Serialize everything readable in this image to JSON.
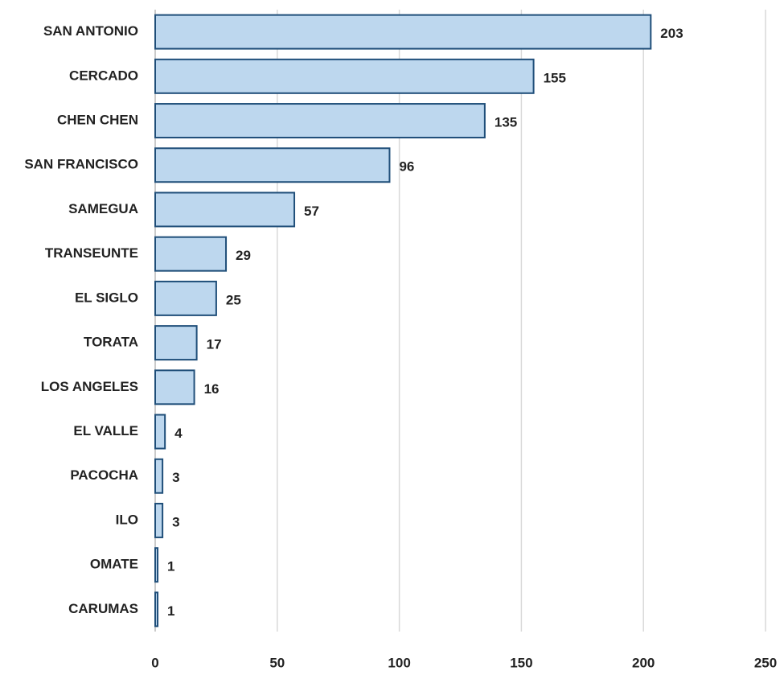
{
  "chart_data": {
    "type": "bar",
    "orientation": "horizontal",
    "categories": [
      "SAN ANTONIO",
      "CERCADO",
      "CHEN CHEN",
      "SAN FRANCISCO",
      "SAMEGUA",
      "TRANSEUNTE",
      "EL SIGLO",
      "TORATA",
      "LOS ANGELES",
      "EL VALLE",
      "PACOCHA",
      "ILO",
      "OMATE",
      "CARUMAS"
    ],
    "values": [
      203,
      155,
      135,
      96,
      57,
      29,
      25,
      17,
      16,
      4,
      3,
      3,
      1,
      1
    ],
    "color": "#bdd7ee",
    "edge_color": "#1f4e79",
    "xlim": [
      0,
      250
    ],
    "xticks": [
      0,
      50,
      100,
      150,
      200,
      250
    ],
    "grid": true
  }
}
